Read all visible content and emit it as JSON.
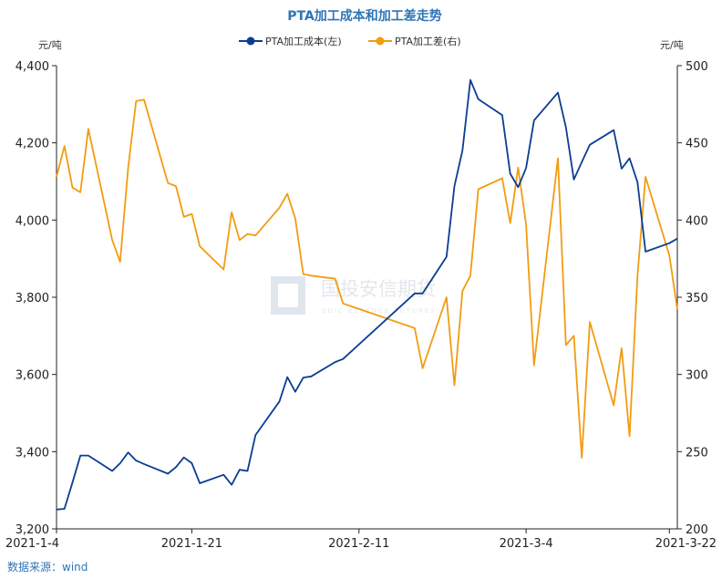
{
  "watermark": {
    "text": "国投安信期货",
    "sub": "SDIC ESSENCE FUTURES"
  },
  "source": "数据来源：wind",
  "chart_data": {
    "type": "line",
    "title": "PTA加工成本和加工差走势",
    "left_unit": "元/吨",
    "right_unit": "元/吨",
    "x_range": [
      "2021-01-04",
      "2021-03-23"
    ],
    "x_ticks": [
      "2021-1-4",
      "2021-1-21",
      "2021-2-11",
      "2021-3-4",
      "2021-3-22"
    ],
    "y_left": {
      "min": 3200,
      "max": 4400,
      "ticks": [
        "3,200",
        "3,400",
        "3,600",
        "3,800",
        "4,000",
        "4,200",
        "4,400"
      ]
    },
    "y_right": {
      "min": 200,
      "max": 500,
      "ticks": [
        "200",
        "250",
        "300",
        "350",
        "400",
        "450",
        "500"
      ]
    },
    "grid": false,
    "legend_position": "top",
    "series": [
      {
        "name": "PTA加工成本(左)",
        "axis": "left",
        "color": "#0b3d91",
        "points": [
          [
            "2021-01-04",
            3250
          ],
          [
            "2021-01-05",
            3252
          ],
          [
            "2021-01-06",
            3320
          ],
          [
            "2021-01-07",
            3390
          ],
          [
            "2021-01-08",
            3390
          ],
          [
            "2021-01-11",
            3350
          ],
          [
            "2021-01-12",
            3370
          ],
          [
            "2021-01-13",
            3398
          ],
          [
            "2021-01-14",
            3377
          ],
          [
            "2021-01-15",
            3368
          ],
          [
            "2021-01-18",
            3343
          ],
          [
            "2021-01-19",
            3360
          ],
          [
            "2021-01-20",
            3385
          ],
          [
            "2021-01-21",
            3370
          ],
          [
            "2021-01-22",
            3318
          ],
          [
            "2021-01-25",
            3340
          ],
          [
            "2021-01-26",
            3314
          ],
          [
            "2021-01-27",
            3353
          ],
          [
            "2021-01-28",
            3350
          ],
          [
            "2021-01-29",
            3443
          ],
          [
            "2021-02-01",
            3530
          ],
          [
            "2021-02-02",
            3593
          ],
          [
            "2021-02-03",
            3555
          ],
          [
            "2021-02-04",
            3592
          ],
          [
            "2021-02-05",
            3595
          ],
          [
            "2021-02-08",
            3632
          ],
          [
            "2021-02-09",
            3640
          ],
          [
            "2021-02-18",
            3810
          ],
          [
            "2021-02-19",
            3810
          ],
          [
            "2021-02-22",
            3905
          ],
          [
            "2021-02-23",
            4088
          ],
          [
            "2021-02-24",
            4180
          ],
          [
            "2021-02-25",
            4363
          ],
          [
            "2021-02-26",
            4313
          ],
          [
            "2021-03-01",
            4272
          ],
          [
            "2021-03-02",
            4120
          ],
          [
            "2021-03-03",
            4085
          ],
          [
            "2021-03-04",
            4135
          ],
          [
            "2021-03-05",
            4258
          ],
          [
            "2021-03-08",
            4330
          ],
          [
            "2021-03-09",
            4240
          ],
          [
            "2021-03-10",
            4105
          ],
          [
            "2021-03-11",
            4150
          ],
          [
            "2021-03-12",
            4195
          ],
          [
            "2021-03-15",
            4233
          ],
          [
            "2021-03-16",
            4133
          ],
          [
            "2021-03-17",
            4160
          ],
          [
            "2021-03-18",
            4098
          ],
          [
            "2021-03-19",
            3918
          ],
          [
            "2021-03-22",
            3940
          ],
          [
            "2021-03-23",
            3952
          ]
        ]
      },
      {
        "name": "PTA加工差(右)",
        "axis": "right",
        "color": "#f29c11",
        "points": [
          [
            "2021-01-04",
            428
          ],
          [
            "2021-01-05",
            448
          ],
          [
            "2021-01-06",
            421
          ],
          [
            "2021-01-07",
            418
          ],
          [
            "2021-01-08",
            459
          ],
          [
            "2021-01-11",
            387
          ],
          [
            "2021-01-12",
            373
          ],
          [
            "2021-01-13",
            434
          ],
          [
            "2021-01-14",
            477
          ],
          [
            "2021-01-15",
            478
          ],
          [
            "2021-01-18",
            424
          ],
          [
            "2021-01-19",
            422
          ],
          [
            "2021-01-20",
            402
          ],
          [
            "2021-01-21",
            404
          ],
          [
            "2021-01-22",
            383
          ],
          [
            "2021-01-25",
            368
          ],
          [
            "2021-01-26",
            405
          ],
          [
            "2021-01-27",
            387
          ],
          [
            "2021-01-28",
            391
          ],
          [
            "2021-01-29",
            390
          ],
          [
            "2021-02-01",
            408
          ],
          [
            "2021-02-02",
            417
          ],
          [
            "2021-02-03",
            401
          ],
          [
            "2021-02-04",
            365
          ],
          [
            "2021-02-05",
            364
          ],
          [
            "2021-02-08",
            362
          ],
          [
            "2021-02-09",
            346
          ],
          [
            "2021-02-18",
            330
          ],
          [
            "2021-02-19",
            304
          ],
          [
            "2021-02-22",
            350
          ],
          [
            "2021-02-23",
            293
          ],
          [
            "2021-02-24",
            354
          ],
          [
            "2021-02-25",
            364
          ],
          [
            "2021-02-26",
            420
          ],
          [
            "2021-03-01",
            427
          ],
          [
            "2021-03-02",
            398
          ],
          [
            "2021-03-03",
            434
          ],
          [
            "2021-03-04",
            397
          ],
          [
            "2021-03-05",
            306
          ],
          [
            "2021-03-08",
            440
          ],
          [
            "2021-03-09",
            319
          ],
          [
            "2021-03-10",
            325
          ],
          [
            "2021-03-11",
            246
          ],
          [
            "2021-03-12",
            334
          ],
          [
            "2021-03-15",
            280
          ],
          [
            "2021-03-16",
            317
          ],
          [
            "2021-03-17",
            260
          ],
          [
            "2021-03-18",
            364
          ],
          [
            "2021-03-19",
            428
          ],
          [
            "2021-03-22",
            377
          ],
          [
            "2021-03-23",
            342
          ]
        ]
      }
    ]
  }
}
